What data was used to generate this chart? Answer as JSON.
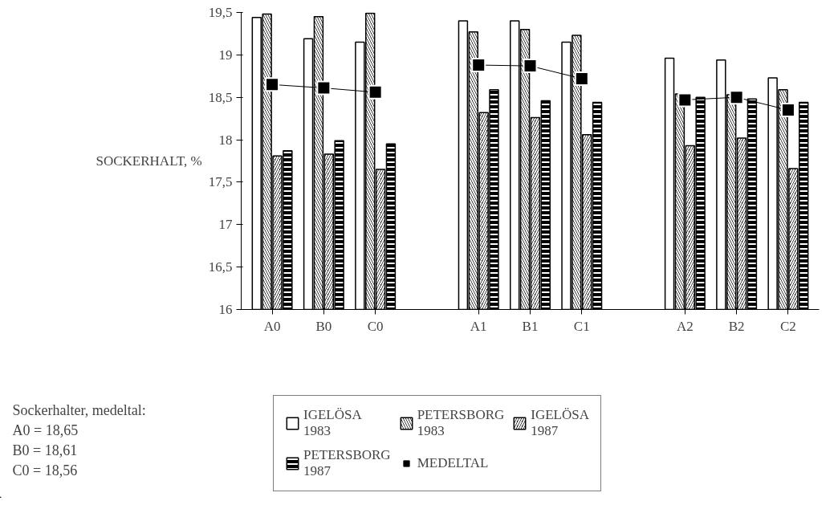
{
  "chart_data": {
    "type": "bar",
    "ylabel": "SOCKERHALT, %",
    "categories": [
      "A0",
      "B0",
      "C0",
      null,
      "A1",
      "B1",
      "C1",
      null,
      "A2",
      "B2",
      "C2"
    ],
    "series": [
      {
        "name": "IGELÖSA\n1983",
        "color": "#ffffff",
        "values": [
          19.44,
          19.19,
          19.15,
          null,
          19.4,
          19.4,
          19.15,
          null,
          18.96,
          18.94,
          18.73
        ]
      },
      {
        "name": "PETERSBORG\n1983",
        "color": "#000000",
        "values": [
          19.48,
          19.45,
          19.49,
          null,
          19.27,
          19.3,
          19.23,
          null,
          18.54,
          18.53,
          18.59
        ]
      },
      {
        "name": "IGELÖSA\n1987",
        "color": "#000000",
        "values": [
          17.81,
          17.83,
          17.65,
          null,
          18.32,
          18.26,
          18.06,
          null,
          17.93,
          18.02,
          17.66
        ]
      },
      {
        "name": "PETERSBORG\n1987",
        "color": "#000000",
        "values": [
          17.87,
          17.99,
          17.95,
          null,
          18.59,
          18.46,
          18.44,
          null,
          18.5,
          18.48,
          18.44
        ]
      },
      {
        "name": "MEDELTAL",
        "type": "line",
        "color": "#000000",
        "marker": "square",
        "values": [
          18.65,
          18.61,
          18.56,
          null,
          18.88,
          18.87,
          18.72,
          null,
          18.47,
          18.5,
          18.35
        ]
      }
    ],
    "ylim": [
      16,
      19.5
    ],
    "yticks": [
      16,
      {
        "value": 16.5,
        "label": "16,5"
      },
      17,
      {
        "value": 17.5,
        "label": "17,5"
      },
      18,
      {
        "value": 18.5,
        "label": "18,5"
      },
      19,
      {
        "value": 19.5,
        "label": "19,5"
      }
    ],
    "grid": false,
    "legend": "bottom",
    "annotations": [
      "Sockerhalter, medeltal:",
      "A0  = 18,65",
      "B0  = 18,61",
      "C0  = 18,56"
    ]
  }
}
